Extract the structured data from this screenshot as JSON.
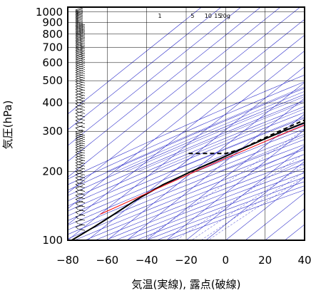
{
  "chart_data": {
    "type": "line",
    "title": "",
    "xlabel": "気温(実線), 露点(破線)",
    "ylabel": "気圧(hPa)",
    "x_ticks": [
      -80,
      -60,
      -40,
      -20,
      0,
      20,
      40
    ],
    "y_ticks": [
      100,
      200,
      300,
      400,
      500,
      600,
      700,
      800,
      900,
      1000
    ],
    "xlim": [
      -80,
      40
    ],
    "ylim": [
      1050,
      100
    ],
    "y_scale": "log",
    "skew": true,
    "mixing_ratio_labels": [
      "1",
      "5",
      "10",
      "15",
      "20g"
    ],
    "mixing_ratio_values": [
      1,
      5,
      10,
      15,
      20
    ],
    "colors": {
      "temperature": "#000000",
      "dewpoint": "#000000",
      "parcel": "#ff0000",
      "adiabats": "#3333cc",
      "grid": "#000000"
    },
    "series": [
      {
        "name": "",
        "style": "solid",
        "color": "#000000",
        "points": [
          [
            28,
            1000
          ],
          [
            25,
            975
          ],
          [
            20,
            950
          ],
          [
            18,
            925
          ],
          [
            17,
            900
          ],
          [
            16,
            875
          ],
          [
            15.5,
            850
          ],
          [
            15,
            825
          ],
          [
            13,
            800
          ],
          [
            11,
            775
          ],
          [
            10,
            750
          ],
          [
            8,
            725
          ],
          [
            6,
            700
          ],
          [
            3,
            650
          ],
          [
            1,
            625
          ],
          [
            -1,
            600
          ],
          [
            -3,
            575
          ],
          [
            -5,
            550
          ],
          [
            -7,
            525
          ],
          [
            -10,
            500
          ],
          [
            -13,
            475
          ],
          [
            -16,
            450
          ],
          [
            -19,
            425
          ],
          [
            -22,
            400
          ],
          [
            -27,
            375
          ],
          [
            -31,
            350
          ],
          [
            -35,
            325
          ],
          [
            -40,
            300
          ],
          [
            -45,
            275
          ],
          [
            -50,
            250
          ],
          [
            -55,
            225
          ],
          [
            -61,
            200
          ],
          [
            -67,
            175
          ],
          [
            -71,
            150
          ],
          [
            -73,
            130
          ],
          [
            -75,
            115
          ],
          [
            -78,
            100
          ]
        ]
      },
      {
        "name": "",
        "style": "dashed",
        "color": "#000000",
        "points": [
          [
            26,
            1000
          ],
          [
            23,
            975
          ],
          [
            18,
            950
          ],
          [
            14,
            925
          ],
          [
            13,
            900
          ],
          [
            12,
            875
          ],
          [
            12,
            850
          ],
          [
            11,
            825
          ],
          [
            9,
            800
          ],
          [
            8,
            775
          ],
          [
            8,
            750
          ],
          [
            7,
            725
          ],
          [
            5,
            700
          ],
          [
            2,
            650
          ],
          [
            -1,
            625
          ],
          [
            -3,
            600
          ],
          [
            -5,
            575
          ],
          [
            -7,
            550
          ],
          [
            -9,
            525
          ],
          [
            -12,
            500
          ],
          [
            -15,
            475
          ],
          [
            -18,
            450
          ],
          [
            -21,
            425
          ],
          [
            -24,
            400
          ],
          [
            -30,
            375
          ],
          [
            -34,
            350
          ],
          [
            -38,
            325
          ],
          [
            -42,
            300
          ],
          [
            -46,
            275
          ],
          [
            -50,
            250
          ],
          [
            -55,
            240
          ],
          [
            -74,
            240
          ]
        ]
      },
      {
        "name": "",
        "style": "solid",
        "color": "#ff0000",
        "points": [
          [
            28,
            1000
          ],
          [
            23,
            950
          ],
          [
            19,
            900
          ],
          [
            16,
            850
          ],
          [
            13,
            800
          ],
          [
            10,
            750
          ],
          [
            7,
            700
          ],
          [
            3,
            650
          ],
          [
            -1,
            600
          ],
          [
            -5,
            550
          ],
          [
            -10,
            500
          ],
          [
            -15,
            450
          ],
          [
            -21,
            400
          ],
          [
            -28,
            350
          ],
          [
            -37,
            300
          ],
          [
            -47,
            250
          ],
          [
            -59,
            200
          ],
          [
            -73,
            150
          ],
          [
            -80,
            130
          ]
        ]
      }
    ]
  }
}
